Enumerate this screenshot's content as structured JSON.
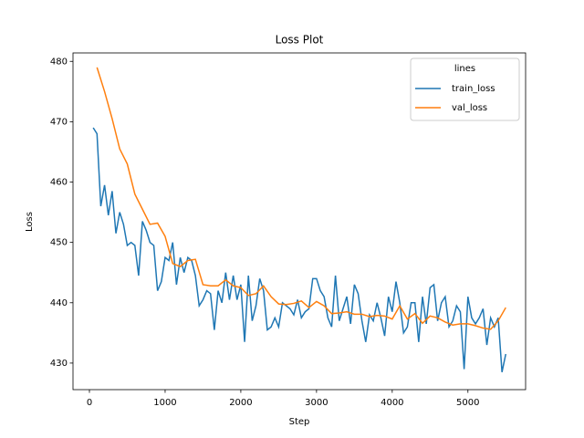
{
  "chart_data": {
    "type": "line",
    "title": "Loss Plot",
    "x_label": "Step",
    "y_label": "Loss",
    "legend_title": "lines",
    "legend_position": "upper right",
    "grid": false,
    "xlim": [
      -217,
      5762
    ],
    "ylim": [
      425.6,
      481.4
    ],
    "xticks": [
      0,
      1000,
      2000,
      3000,
      4000,
      5000
    ],
    "yticks": [
      430,
      440,
      450,
      460,
      470,
      480
    ],
    "series": [
      {
        "name": "train_loss",
        "color": "#1f77b4",
        "x": [
          50,
          100,
          150,
          200,
          250,
          300,
          350,
          400,
          450,
          500,
          550,
          600,
          650,
          700,
          750,
          800,
          850,
          900,
          950,
          1000,
          1050,
          1100,
          1150,
          1200,
          1250,
          1300,
          1350,
          1400,
          1450,
          1500,
          1550,
          1600,
          1650,
          1700,
          1750,
          1800,
          1850,
          1900,
          1950,
          2000,
          2050,
          2100,
          2150,
          2200,
          2250,
          2300,
          2350,
          2400,
          2450,
          2500,
          2550,
          2600,
          2650,
          2700,
          2750,
          2800,
          2850,
          2900,
          2950,
          3000,
          3050,
          3100,
          3150,
          3200,
          3250,
          3300,
          3350,
          3400,
          3450,
          3500,
          3550,
          3600,
          3650,
          3700,
          3750,
          3800,
          3850,
          3900,
          3950,
          4000,
          4050,
          4100,
          4150,
          4200,
          4250,
          4300,
          4350,
          4400,
          4450,
          4500,
          4550,
          4600,
          4650,
          4700,
          4750,
          4800,
          4850,
          4900,
          4950,
          5000,
          5050,
          5100,
          5150,
          5200,
          5250,
          5300,
          5350,
          5400,
          5450,
          5500
        ],
        "values": [
          469,
          468,
          456,
          459.5,
          454.5,
          458.5,
          451.5,
          455,
          453,
          449.5,
          450,
          449.5,
          444.5,
          453.5,
          452,
          450,
          449.5,
          442,
          443.5,
          447.5,
          447,
          450,
          443,
          447.5,
          445,
          447.5,
          447,
          444.5,
          439.5,
          440.5,
          442,
          441.5,
          435.5,
          442,
          440,
          445,
          440.5,
          444.5,
          440.5,
          443,
          433.5,
          444.5,
          437,
          439.5,
          444,
          442,
          435.5,
          436,
          437.5,
          436,
          440,
          439.5,
          439,
          438,
          440.5,
          437.5,
          438.5,
          439,
          444,
          444,
          442,
          441,
          437.5,
          436,
          444.5,
          437,
          439,
          441,
          436.5,
          443,
          441.5,
          437,
          433.5,
          438,
          437,
          440,
          437.5,
          434.5,
          441,
          438.5,
          443.5,
          440,
          435,
          436,
          440,
          440,
          433.5,
          441,
          436.5,
          442.5,
          443,
          437,
          440,
          441,
          436,
          437,
          439.5,
          438.5,
          429,
          441,
          437.5,
          436.5,
          437.5,
          439,
          433,
          437.5,
          436,
          437.5,
          428.5,
          431.5
        ]
      },
      {
        "name": "val_loss",
        "color": "#ff7f0e",
        "x": [
          100,
          200,
          300,
          400,
          500,
          600,
          700,
          800,
          900,
          1000,
          1100,
          1200,
          1300,
          1400,
          1500,
          1600,
          1700,
          1800,
          1900,
          2000,
          2100,
          2200,
          2300,
          2400,
          2500,
          2600,
          2700,
          2800,
          2900,
          3000,
          3100,
          3200,
          3300,
          3400,
          3500,
          3600,
          3700,
          3800,
          3900,
          4000,
          4100,
          4200,
          4300,
          4400,
          4500,
          4600,
          4700,
          4800,
          4900,
          5000,
          5100,
          5200,
          5300,
          5400,
          5500
        ],
        "values": [
          479,
          475,
          470.5,
          465.5,
          463,
          458,
          455.5,
          453,
          453.2,
          451,
          446.5,
          446,
          447,
          447.2,
          443,
          442.8,
          442.8,
          443.8,
          442.8,
          442.5,
          441.2,
          441.5,
          442.8,
          441,
          439.8,
          439.7,
          439.9,
          440.3,
          439.2,
          440.2,
          439.5,
          438.2,
          438.3,
          438.5,
          438.1,
          438.1,
          437.7,
          437.9,
          437.8,
          437.3,
          439.5,
          437.3,
          438.2,
          436.6,
          437.8,
          437.5,
          436.8,
          436.3,
          436.5,
          436.5,
          436.2,
          435.8,
          435.6,
          437,
          439.2
        ]
      }
    ]
  }
}
